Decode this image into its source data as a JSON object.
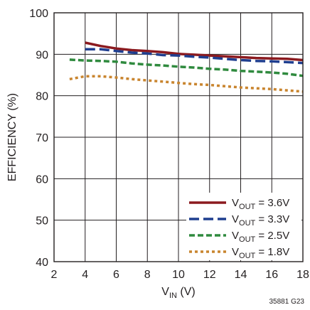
{
  "chart_data": {
    "type": "line",
    "title": "",
    "xlabel": "V_IN (V)",
    "xlabel_parts": {
      "main": "V",
      "sub": "IN",
      "rest": " (V)"
    },
    "ylabel": "EFFICIENCY (%)",
    "xlim": [
      2,
      18
    ],
    "ylim": [
      40,
      100
    ],
    "xticks": [
      2,
      4,
      6,
      8,
      10,
      12,
      14,
      16,
      18
    ],
    "yticks": [
      40,
      50,
      60,
      70,
      80,
      90,
      100
    ],
    "grid": true,
    "legend_position": "bottom-right",
    "series": [
      {
        "name": "V_OUT = 3.6V",
        "label_parts": {
          "main": "V",
          "sub": "OUT",
          "rest": " = 3.6V"
        },
        "color": "#8b1a1f",
        "dash": "solid",
        "x": [
          4,
          5,
          6,
          7,
          8,
          9,
          10,
          11,
          12,
          13,
          14,
          15,
          16,
          17,
          18
        ],
        "y": [
          92.8,
          92.0,
          91.4,
          91.0,
          90.8,
          90.5,
          90.1,
          89.9,
          89.7,
          89.5,
          89.3,
          89.1,
          89.0,
          88.9,
          88.6
        ]
      },
      {
        "name": "V_OUT = 3.3V",
        "label_parts": {
          "main": "V",
          "sub": "OUT",
          "rest": " = 3.3V"
        },
        "color": "#1f3e8f",
        "dash": "long-dash",
        "x": [
          4,
          5,
          6,
          7,
          8,
          9,
          10,
          11,
          12,
          13,
          14,
          15,
          16,
          17,
          18
        ],
        "y": [
          91.2,
          91.2,
          90.8,
          90.4,
          90.2,
          89.8,
          89.7,
          89.4,
          89.2,
          88.9,
          88.6,
          88.4,
          88.3,
          88.1,
          87.9
        ]
      },
      {
        "name": "V_OUT = 2.5V",
        "label_parts": {
          "main": "V",
          "sub": "OUT",
          "rest": " = 2.5V"
        },
        "color": "#2f8a3e",
        "dash": "medium-dash",
        "x": [
          3,
          4,
          5,
          6,
          7,
          8,
          9,
          10,
          11,
          12,
          13,
          14,
          15,
          16,
          17,
          18
        ],
        "y": [
          88.7,
          88.5,
          88.4,
          88.2,
          87.8,
          87.5,
          87.3,
          87.0,
          86.8,
          86.5,
          86.3,
          86.0,
          85.8,
          85.6,
          85.3,
          84.8
        ]
      },
      {
        "name": "V_OUT = 1.8V",
        "label_parts": {
          "main": "V",
          "sub": "OUT",
          "rest": " = 1.8V"
        },
        "color": "#c9852f",
        "dash": "dot",
        "x": [
          3,
          4,
          5,
          6,
          7,
          8,
          9,
          10,
          11,
          12,
          13,
          14,
          15,
          16,
          17,
          18
        ],
        "y": [
          84.0,
          84.7,
          84.7,
          84.4,
          84.0,
          83.7,
          83.4,
          83.1,
          82.8,
          82.6,
          82.3,
          82.0,
          81.8,
          81.6,
          81.3,
          81.0
        ]
      }
    ]
  },
  "figure_id": "35881 G23"
}
